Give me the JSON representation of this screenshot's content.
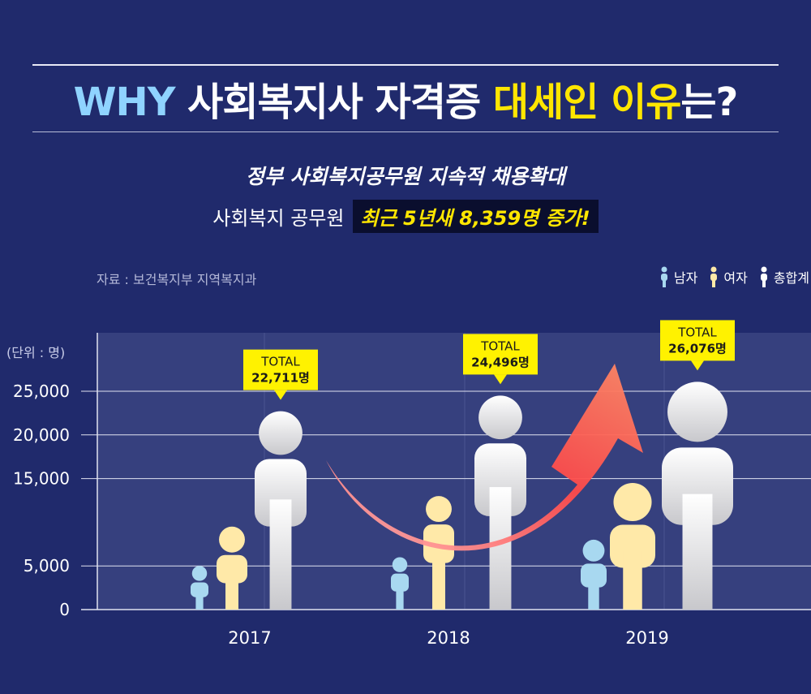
{
  "header": {
    "why": "WHY",
    "title_mid": " 사회복지사 자격증 ",
    "title_highlight": "대세인 이유",
    "title_end": "는?"
  },
  "subtitle": {
    "line1": "정부 사회복지공무원 지속적 채용확대",
    "line2_plain": "사회복지 공무원",
    "line2_highlight": "최근 5년새 8,359명 증가!"
  },
  "source": "자료 : 보건복지부 지역복지과",
  "legend": [
    {
      "label": "남자",
      "color": "#a8d8f0"
    },
    {
      "label": "여자",
      "color": "#ffe9a8"
    },
    {
      "label": "총합계",
      "color": "#ffffff"
    }
  ],
  "chart_data": {
    "type": "bar",
    "unit_label": "(단위 : 명)",
    "y_ticks": [
      "0",
      "5,000",
      "15,000",
      "20,000",
      "25,000"
    ],
    "y_tick_values": [
      0,
      5000,
      15000,
      20000,
      25000
    ],
    "categories": [
      "2017",
      "2018",
      "2019"
    ],
    "series": [
      {
        "name": "남자",
        "values": [
          5000,
          6000,
          8000
        ],
        "color": "#a8d8f0"
      },
      {
        "name": "여자",
        "values": [
          9500,
          13000,
          14500
        ],
        "color": "#ffe9a8"
      },
      {
        "name": "총합계",
        "values": [
          22711,
          24496,
          26076
        ],
        "color": "#ffffff"
      }
    ],
    "total_callouts": [
      {
        "label": "TOTAL",
        "value": "22,711명"
      },
      {
        "label": "TOTAL",
        "value": "24,496명"
      },
      {
        "label": "TOTAL",
        "value": "26,076명"
      }
    ]
  }
}
